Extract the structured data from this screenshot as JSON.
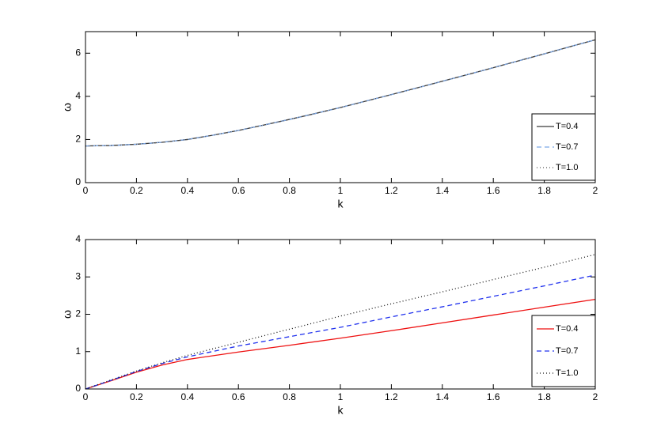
{
  "chart_data": [
    {
      "type": "line",
      "xlabel": "k",
      "ylabel": "ω",
      "x": [
        0,
        0.1,
        0.2,
        0.3,
        0.4,
        0.5,
        0.6,
        0.7,
        0.8,
        0.9,
        1.0,
        1.1,
        1.2,
        1.3,
        1.4,
        1.5,
        1.6,
        1.7,
        1.8,
        1.9,
        2.0
      ],
      "series": [
        {
          "name": "T=0.4",
          "color": "#3a3a3a",
          "linestyle": "solid",
          "values": [
            1.7,
            1.72,
            1.78,
            1.87,
            2.0,
            2.2,
            2.42,
            2.67,
            2.93,
            3.2,
            3.48,
            3.78,
            4.08,
            4.39,
            4.7,
            5.01,
            5.33,
            5.65,
            5.97,
            6.3,
            6.62
          ]
        },
        {
          "name": "T=0.7",
          "color": "#7aa6e6",
          "linestyle": "dashed",
          "values": [
            1.7,
            1.72,
            1.78,
            1.87,
            2.0,
            2.2,
            2.42,
            2.67,
            2.93,
            3.2,
            3.48,
            3.78,
            4.08,
            4.39,
            4.7,
            5.01,
            5.33,
            5.65,
            5.97,
            6.3,
            6.62
          ]
        },
        {
          "name": "T=1.0",
          "color": "#555555",
          "linestyle": "dotted",
          "values": [
            1.7,
            1.72,
            1.78,
            1.87,
            2.0,
            2.2,
            2.42,
            2.67,
            2.93,
            3.2,
            3.48,
            3.78,
            4.08,
            4.39,
            4.7,
            5.01,
            5.33,
            5.65,
            5.97,
            6.3,
            6.62
          ]
        }
      ],
      "xlim": [
        0,
        2
      ],
      "xticks": [
        0,
        0.2,
        0.4,
        0.6,
        0.8,
        1,
        1.2,
        1.4,
        1.6,
        1.8,
        2
      ],
      "ylim": [
        0,
        7
      ],
      "yticks": [
        0,
        2,
        4,
        6
      ],
      "grid": false,
      "legend": "lower right"
    },
    {
      "type": "line",
      "xlabel": "k",
      "ylabel": "ω",
      "x": [
        0,
        0.1,
        0.2,
        0.3,
        0.4,
        0.6,
        0.8,
        1.0,
        1.2,
        1.4,
        1.6,
        1.8,
        2.0
      ],
      "series": [
        {
          "name": "T=0.4",
          "color": "#ee1111",
          "linestyle": "solid",
          "values": [
            0,
            0.22,
            0.45,
            0.64,
            0.79,
            0.99,
            1.17,
            1.36,
            1.56,
            1.77,
            1.98,
            2.19,
            2.4
          ]
        },
        {
          "name": "T=0.7",
          "color": "#2233ee",
          "linestyle": "dashed",
          "values": [
            0,
            0.23,
            0.47,
            0.68,
            0.86,
            1.15,
            1.4,
            1.65,
            1.93,
            2.2,
            2.48,
            2.76,
            3.05
          ]
        },
        {
          "name": "T=1.0",
          "color": "#111111",
          "linestyle": "dotted",
          "values": [
            0,
            0.24,
            0.48,
            0.7,
            0.9,
            1.25,
            1.6,
            1.95,
            2.28,
            2.6,
            2.93,
            3.26,
            3.6
          ]
        }
      ],
      "xlim": [
        0,
        2
      ],
      "xticks": [
        0,
        0.2,
        0.4,
        0.6,
        0.8,
        1,
        1.2,
        1.4,
        1.6,
        1.8,
        2
      ],
      "ylim": [
        0,
        4
      ],
      "yticks": [
        0,
        1,
        2,
        3,
        4
      ],
      "grid": false,
      "legend": "lower right"
    }
  ]
}
